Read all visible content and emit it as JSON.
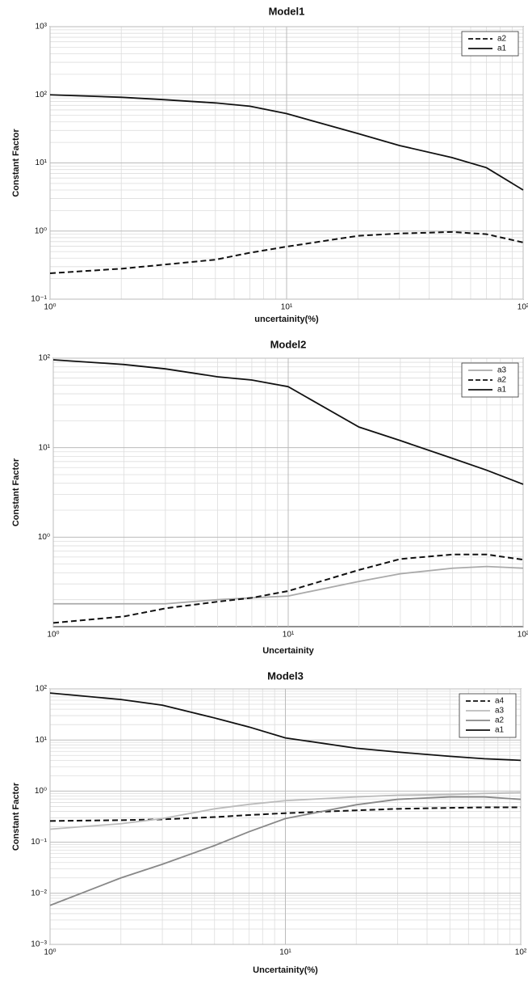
{
  "chart_data": [
    {
      "type": "line",
      "title": "Model1",
      "x_label": "uncertainity(%)",
      "y_label": "Constant Factor",
      "log_x": true,
      "log_y": true,
      "grid": true,
      "legend": "upper right",
      "xlim": [
        1,
        100
      ],
      "ylim": [
        0.1,
        1000
      ],
      "xticks": [
        {
          "value": 1,
          "label": "10⁰"
        },
        {
          "value": 10,
          "label": "10¹"
        },
        {
          "value": 100,
          "label": "10²"
        }
      ],
      "yticks": [
        {
          "value": 0.1,
          "label": "10⁻¹"
        },
        {
          "value": 1,
          "label": "10⁰"
        },
        {
          "value": 10,
          "label": "10¹"
        },
        {
          "value": 100,
          "label": "10²"
        },
        {
          "value": 1000,
          "label": "10³"
        }
      ],
      "x": [
        1,
        2,
        3,
        5,
        7,
        10,
        20,
        30,
        50,
        70,
        100
      ],
      "series": [
        {
          "name": "a2",
          "color": "#111111",
          "dash": "dashed",
          "values": [
            0.24,
            0.28,
            0.32,
            0.38,
            0.48,
            0.59,
            0.85,
            0.92,
            0.97,
            0.9,
            0.68
          ]
        },
        {
          "name": "a1",
          "color": "#111111",
          "dash": "solid",
          "values": [
            100,
            92,
            85,
            76,
            68,
            53,
            27,
            18,
            12,
            8.5,
            4
          ]
        }
      ]
    },
    {
      "type": "line",
      "title": "Model2",
      "x_label": "Uncertainity",
      "y_label": "Constant Factor",
      "log_x": true,
      "log_y": true,
      "grid": true,
      "legend": "upper right",
      "xlim": [
        1,
        100
      ],
      "ylim": [
        0.1,
        100
      ],
      "xticks": [
        {
          "value": 1,
          "label": "10⁰"
        },
        {
          "value": 10,
          "label": "10¹"
        },
        {
          "value": 100,
          "label": "10²"
        }
      ],
      "yticks": [
        {
          "value": 1,
          "label": "10⁰"
        },
        {
          "value": 10,
          "label": "10¹"
        },
        {
          "value": 100,
          "label": "10²"
        }
      ],
      "x": [
        1,
        2,
        3,
        5,
        7,
        10,
        20,
        30,
        50,
        70,
        100
      ],
      "series": [
        {
          "name": "a3",
          "color": "#aaaaaa",
          "dash": "solid",
          "values": [
            0.18,
            0.18,
            0.18,
            0.2,
            0.21,
            0.22,
            0.32,
            0.39,
            0.45,
            0.47,
            0.45
          ]
        },
        {
          "name": "a2",
          "color": "#111111",
          "dash": "dashed",
          "values": [
            0.11,
            0.13,
            0.16,
            0.19,
            0.21,
            0.25,
            0.43,
            0.57,
            0.64,
            0.64,
            0.56
          ]
        },
        {
          "name": "a1",
          "color": "#111111",
          "dash": "solid",
          "values": [
            96,
            85,
            76,
            62,
            57,
            48,
            17,
            12,
            7.6,
            5.6,
            3.9
          ]
        }
      ]
    },
    {
      "type": "line",
      "title": "Model3",
      "x_label": "Uncertainity(%)",
      "y_label": "Constant Factor",
      "log_x": true,
      "log_y": true,
      "grid": true,
      "legend": "upper right",
      "xlim": [
        1,
        100
      ],
      "ylim": [
        0.001,
        100
      ],
      "xticks": [
        {
          "value": 1,
          "label": "10⁰"
        },
        {
          "value": 10,
          "label": "10¹"
        },
        {
          "value": 100,
          "label": "10²"
        }
      ],
      "yticks": [
        {
          "value": 0.001,
          "label": "10⁻³"
        },
        {
          "value": 0.01,
          "label": "10⁻²"
        },
        {
          "value": 0.1,
          "label": "10⁻¹"
        },
        {
          "value": 1,
          "label": "10⁰"
        },
        {
          "value": 10,
          "label": "10¹"
        },
        {
          "value": 100,
          "label": "10²"
        }
      ],
      "x": [
        1,
        2,
        3,
        5,
        7,
        10,
        20,
        30,
        50,
        70,
        100
      ],
      "series": [
        {
          "name": "a4",
          "color": "#111111",
          "dash": "dashed",
          "values": [
            0.26,
            0.27,
            0.28,
            0.31,
            0.34,
            0.37,
            0.42,
            0.45,
            0.47,
            0.48,
            0.48
          ]
        },
        {
          "name": "a3",
          "color": "#bbbbbb",
          "dash": "solid",
          "values": [
            0.18,
            0.23,
            0.29,
            0.45,
            0.55,
            0.65,
            0.77,
            0.83,
            0.86,
            0.9,
            0.93
          ]
        },
        {
          "name": "a2",
          "color": "#888888",
          "dash": "solid",
          "values": [
            0.0058,
            0.02,
            0.037,
            0.086,
            0.16,
            0.29,
            0.54,
            0.69,
            0.77,
            0.77,
            0.69
          ]
        },
        {
          "name": "a1",
          "color": "#111111",
          "dash": "solid",
          "values": [
            83,
            62,
            48,
            27,
            18,
            11,
            6.9,
            5.8,
            4.8,
            4.3,
            4.0
          ]
        }
      ]
    }
  ]
}
